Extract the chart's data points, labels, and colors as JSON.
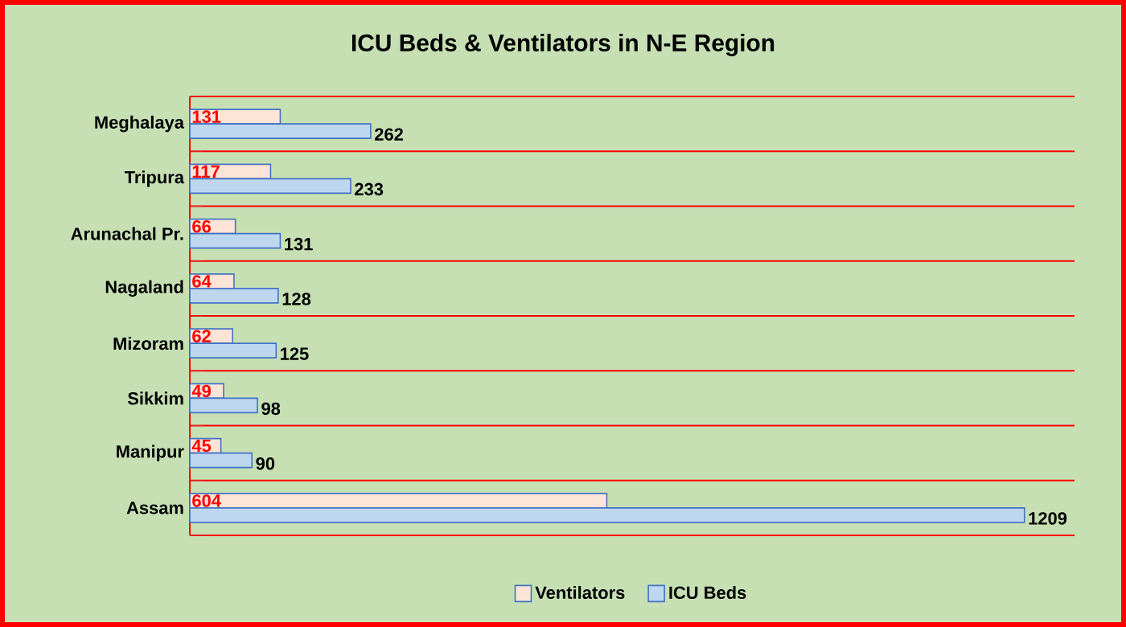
{
  "chart_data": {
    "type": "bar",
    "orientation": "horizontal",
    "title": "ICU Beds & Ventilators in N-E Region",
    "categories": [
      "Meghalaya",
      "Tripura",
      "Arunachal Pr.",
      "Nagaland",
      "Mizoram",
      "Sikkim",
      "Manipur",
      "Assam"
    ],
    "series": [
      {
        "name": "Ventilators",
        "color": "#fce4d6",
        "values": [
          131,
          117,
          66,
          64,
          62,
          49,
          45,
          604
        ]
      },
      {
        "name": "ICU Beds",
        "color": "#bdd7ee",
        "values": [
          262,
          233,
          131,
          128,
          125,
          98,
          90,
          1209
        ]
      }
    ],
    "data_labels": true,
    "grid": "y",
    "legend": "bottom"
  }
}
